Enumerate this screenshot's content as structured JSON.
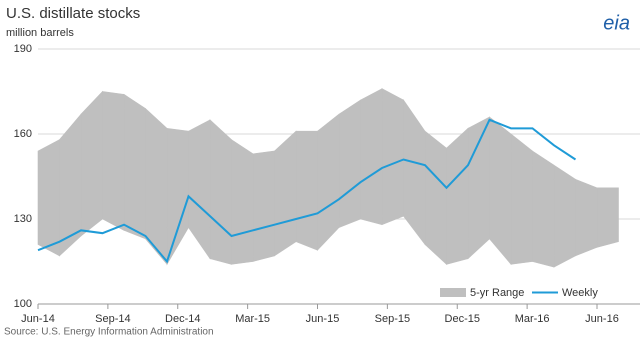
{
  "chart_data": {
    "type": "range-line",
    "title": "U.S. distillate stocks",
    "subtitle": "million barrels",
    "logo": "eia",
    "source": "Source: U.S. Energy Information Administration",
    "x": [
      0,
      4,
      8,
      12,
      16,
      20,
      24,
      28,
      32,
      36,
      40,
      44,
      48,
      52,
      56,
      60,
      64,
      68,
      72,
      76,
      80,
      84,
      88,
      92,
      96,
      100,
      104,
      108
    ],
    "xlim": [
      0,
      112
    ],
    "xticks": [
      {
        "value": 0,
        "label": "Jun-14"
      },
      {
        "value": 13,
        "label": "Sep-14"
      },
      {
        "value": 26,
        "label": "Dec-14"
      },
      {
        "value": 39,
        "label": "Mar-15"
      },
      {
        "value": 52,
        "label": "Jun-15"
      },
      {
        "value": 65,
        "label": "Sep-15"
      },
      {
        "value": 78,
        "label": "Dec-15"
      },
      {
        "value": 91,
        "label": "Mar-16"
      },
      {
        "value": 104,
        "label": "Jun-16"
      }
    ],
    "ylim": [
      100,
      190
    ],
    "yticks": [
      100,
      130,
      160,
      190
    ],
    "grid": true,
    "series": [
      {
        "name": "5-yr Range",
        "color": "#bfbfbf",
        "low": [
          121,
          117,
          124,
          130,
          126,
          123,
          114,
          127,
          116,
          114,
          115,
          117,
          122,
          119,
          127,
          130,
          128,
          131,
          121,
          114,
          116,
          123,
          114,
          115,
          113,
          117,
          120,
          122
        ],
        "high": [
          154,
          158,
          167,
          175,
          174,
          169,
          162,
          161,
          165,
          158,
          153,
          154,
          161,
          161,
          167,
          172,
          176,
          172,
          161,
          155,
          162,
          166,
          160,
          154,
          149,
          144,
          141,
          141
        ]
      },
      {
        "name": "Weekly",
        "color": "#1f9bd7",
        "values": [
          119,
          122,
          126,
          125,
          128,
          124,
          115,
          138,
          131,
          124,
          126,
          128,
          130,
          132,
          137,
          143,
          148,
          151,
          149,
          141,
          149,
          165,
          162,
          162,
          156,
          151,
          null,
          null
        ]
      }
    ]
  }
}
